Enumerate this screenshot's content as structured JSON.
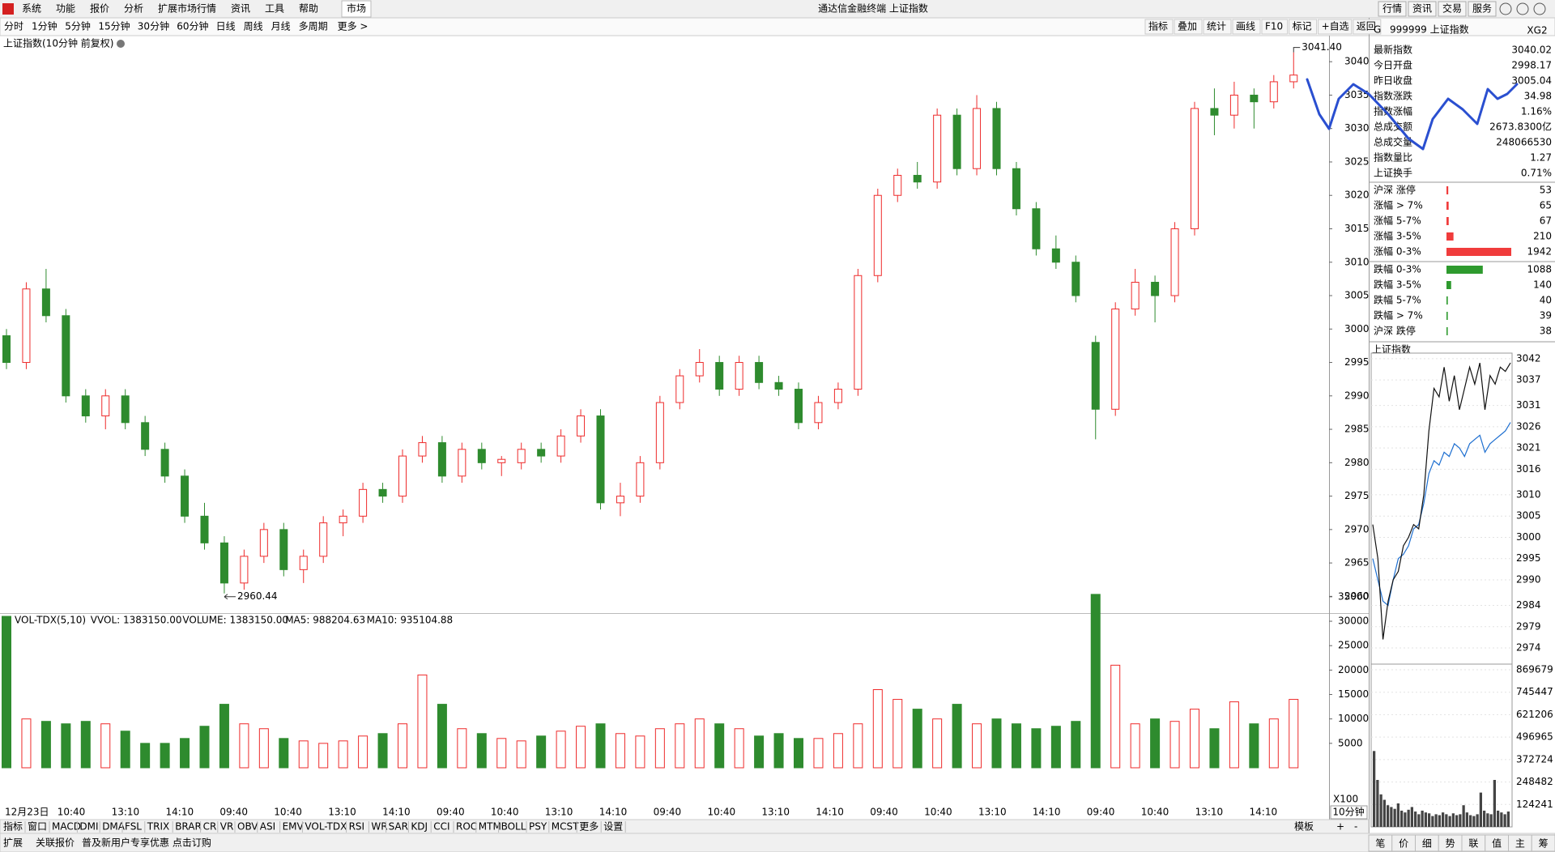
{
  "menu": [
    "系统",
    "功能",
    "报价",
    "分析",
    "扩展市场行情",
    "资讯",
    "工具",
    "帮助"
  ],
  "market_tab": "市场",
  "window_title": "通达信金融终端 上证指数",
  "top_buttons": [
    "行情",
    "资讯",
    "交易",
    "服务"
  ],
  "periods": [
    "分时",
    "1分钟",
    "5分钟",
    "15分钟",
    "30分钟",
    "60分钟",
    "日线",
    "周线",
    "月线",
    "多周期"
  ],
  "period_more": "更多 >",
  "tools": [
    "指标",
    "叠加",
    "统计",
    "画线",
    "F10",
    "标记",
    "+自选",
    "返回"
  ],
  "main_chart": {
    "title": "上证指数(10分钟 前复权)",
    "ylim": [
      2957.5,
      3043.9
    ],
    "yticks": [
      2960,
      2965,
      2970,
      2975,
      2980,
      2985,
      2990,
      2995,
      3000,
      3005,
      3010,
      3015,
      3020,
      3025,
      3030,
      3035,
      3040
    ],
    "candles": [
      [
        2999,
        3000,
        2994,
        2995
      ],
      [
        2995,
        3007,
        2994,
        3006
      ],
      [
        3006,
        3009,
        3001,
        3002
      ],
      [
        3002,
        3003,
        2989,
        2990
      ],
      [
        2990,
        2991,
        2986,
        2987
      ],
      [
        2987,
        2991,
        2985,
        2990
      ],
      [
        2990,
        2991,
        2985,
        2986
      ],
      [
        2986,
        2987,
        2981,
        2982
      ],
      [
        2982,
        2983,
        2977,
        2978
      ],
      [
        2978,
        2979,
        2971,
        2972
      ],
      [
        2972,
        2974,
        2967,
        2968
      ],
      [
        2968,
        2969,
        2960.44,
        2962
      ],
      [
        2962,
        2967,
        2961,
        2966
      ],
      [
        2966,
        2971,
        2965,
        2970
      ],
      [
        2970,
        2971,
        2963,
        2964
      ],
      [
        2964,
        2967,
        2962,
        2966
      ],
      [
        2966,
        2972,
        2965,
        2971
      ],
      [
        2971,
        2973,
        2969,
        2972
      ],
      [
        2972,
        2977,
        2971,
        2976
      ],
      [
        2976,
        2977,
        2974,
        2975
      ],
      [
        2975,
        2982,
        2974,
        2981
      ],
      [
        2981,
        2984,
        2980,
        2983
      ],
      [
        2983,
        2984,
        2977,
        2978
      ],
      [
        2978,
        2983,
        2977,
        2982
      ],
      [
        2982,
        2983,
        2979,
        2980
      ],
      [
        2980,
        2981,
        2978,
        2980.5
      ],
      [
        2980,
        2983,
        2979,
        2982
      ],
      [
        2982,
        2983,
        2980,
        2981
      ],
      [
        2981,
        2985,
        2980,
        2984
      ],
      [
        2984,
        2988,
        2983,
        2987
      ],
      [
        2987,
        2988,
        2973,
        2974
      ],
      [
        2974,
        2977,
        2972,
        2975
      ],
      [
        2975,
        2981,
        2974,
        2980
      ],
      [
        2980,
        2990,
        2979,
        2989
      ],
      [
        2989,
        2994,
        2988,
        2993
      ],
      [
        2993,
        2997,
        2992,
        2995
      ],
      [
        2995,
        2996,
        2990,
        2991
      ],
      [
        2991,
        2996,
        2990,
        2995
      ],
      [
        2995,
        2996,
        2991,
        2992
      ],
      [
        2992,
        2993,
        2990,
        2991
      ],
      [
        2991,
        2992,
        2985,
        2986
      ],
      [
        2986,
        2990,
        2985,
        2989
      ],
      [
        2989,
        2992,
        2988,
        2991
      ],
      [
        2991,
        3009,
        2990,
        3008
      ],
      [
        3008,
        3021,
        3007,
        3020
      ],
      [
        3020,
        3024,
        3019,
        3023
      ],
      [
        3023,
        3025,
        3021,
        3022
      ],
      [
        3022,
        3033,
        3021,
        3032
      ],
      [
        3032,
        3033,
        3023,
        3024
      ],
      [
        3024,
        3035,
        3023,
        3033
      ],
      [
        3033,
        3034,
        3023,
        3024
      ],
      [
        3024,
        3025,
        3017,
        3018
      ],
      [
        3018,
        3019,
        3011,
        3012
      ],
      [
        3012,
        3014,
        3009,
        3010
      ],
      [
        3010,
        3011,
        3004,
        3005
      ],
      [
        2998,
        2999,
        2983.5,
        2988
      ],
      [
        2988,
        3004,
        2987,
        3003
      ],
      [
        3003,
        3009,
        3002,
        3007
      ],
      [
        3007,
        3008,
        3001,
        3005
      ],
      [
        3005,
        3016,
        3004,
        3015
      ],
      [
        3015,
        3034,
        3014,
        3033
      ],
      [
        3033,
        3036,
        3029,
        3032
      ],
      [
        3032,
        3037,
        3030,
        3035
      ],
      [
        3035,
        3036,
        3030,
        3034
      ],
      [
        3034,
        3038,
        3033,
        3037
      ],
      [
        3037,
        3041.4,
        3036,
        3038
      ]
    ],
    "high_label": "3041.40",
    "low_label": "2960.44",
    "x_labels": [
      "12月23日",
      "10:40",
      "13:10",
      "14:10",
      "09:40",
      "10:40",
      "13:10",
      "14:10",
      "09:40",
      "10:40",
      "13:10",
      "14:10",
      "09:40",
      "10:40",
      "13:10",
      "14:10",
      "09:40",
      "10:40",
      "13:10",
      "14:10",
      "09:40",
      "10:40",
      "13:10",
      "14:10"
    ],
    "period_label": "10分钟"
  },
  "volume_chart": {
    "name": "VOL-TDX(5,10)",
    "vvol": "VVOL: 1383150.00",
    "volume": "VOLUME: 1383150.00",
    "ma5": "MA5: 988204.63",
    "ma10": "MA10: 935104.88",
    "unit_label": "X100",
    "ylim": [
      0,
      38300
    ],
    "yticks": [
      5000,
      10000,
      15000,
      20000,
      25000,
      30000,
      35000
    ],
    "values": [
      31000,
      10000,
      9500,
      9000,
      9500,
      9000,
      7500,
      5000,
      5000,
      6000,
      8500,
      13000,
      9000,
      8000,
      6000,
      5500,
      5000,
      5500,
      6500,
      7000,
      9000,
      19000,
      13000,
      8000,
      7000,
      6000,
      5500,
      6500,
      7500,
      8500,
      9000,
      7000,
      6500,
      8000,
      9000,
      10000,
      9000,
      8000,
      6500,
      7000,
      6000,
      6000,
      7000,
      9000,
      16000,
      14000,
      12000,
      10000,
      13000,
      9000,
      10000,
      9000,
      8000,
      8500,
      9500,
      35500,
      21000,
      9000,
      10000,
      9500,
      12000,
      8000,
      13500,
      9000,
      10000,
      14000
    ]
  },
  "indicator_tabs": [
    "指标",
    "窗口",
    "MACD",
    "DMI",
    "DMA",
    "FSL",
    "TRIX",
    "BRAR",
    "CR",
    "VR",
    "OBV",
    "ASI",
    "EMV",
    "VOL-TDX",
    "RSI",
    "WR",
    "SAR",
    "KDJ",
    "CCI",
    "ROC",
    "MTM",
    "BOLL",
    "PSY",
    "MCST",
    "更多",
    "设置"
  ],
  "active_indicator": 13,
  "template_tabs": [
    "模板",
    "+",
    "-"
  ],
  "status_bar": [
    "扩展",
    "关联报价",
    "普及新用户专享优惠 点击订购"
  ],
  "quote_panel": {
    "prefix": "G",
    "code": "999999 上证指数",
    "tag": "XG2",
    "rows": [
      {
        "label": "最新指数",
        "value": "3040.02",
        "color": "#e8201c"
      },
      {
        "label": "今日开盘",
        "value": "2998.17",
        "color": "#0a8a0a"
      },
      {
        "label": "昨日收盘",
        "value": "3005.04",
        "color": "#000000"
      },
      {
        "label": "指数涨跌",
        "value": "34.98",
        "color": "#e8201c"
      },
      {
        "label": "指数涨幅",
        "value": "1.16%",
        "color": "#e8201c"
      },
      {
        "label": "总成交额",
        "value": "2673.8300亿",
        "color": "#000000"
      },
      {
        "label": "总成交量",
        "value": "248066530",
        "color": "#000000"
      },
      {
        "label": "指数量比",
        "value": "1.27",
        "color": "#e8201c"
      },
      {
        "label": "上证换手",
        "value": "0.71%",
        "color": "#000000"
      }
    ]
  },
  "breadth": {
    "up_color": "#f03c3c",
    "down_color": "#2e9a2e",
    "up": [
      {
        "label": "沪深 涨停",
        "value": 53
      },
      {
        "label": "涨幅 > 7%",
        "value": 65
      },
      {
        "label": "涨幅 5-7%",
        "value": 67
      },
      {
        "label": "涨幅 3-5%",
        "value": 210
      },
      {
        "label": "涨幅 0-3%",
        "value": 1942
      }
    ],
    "down": [
      {
        "label": "跌幅 0-3%",
        "value": 1088
      },
      {
        "label": "跌幅 3-5%",
        "value": 140
      },
      {
        "label": "跌幅 5-7%",
        "value": 40
      },
      {
        "label": "跌幅 > 7%",
        "value": 39
      },
      {
        "label": "沪深 跌停",
        "value": 38
      }
    ]
  },
  "mini_chart": {
    "title": "上证指数",
    "ylim": [
      2970.2,
      3043.3
    ],
    "yticks": [
      3042,
      3037,
      3031,
      3026,
      3021,
      3016,
      3010,
      3005,
      3000,
      2995,
      2990,
      2984,
      2979,
      2974
    ],
    "price": [
      3003,
      2995,
      2976,
      2985,
      2990,
      2992,
      2998,
      3000,
      3003,
      3002,
      3010,
      3025,
      3035,
      3033,
      3040,
      3032,
      3038,
      3030,
      3035,
      3040,
      3036,
      3041,
      3030,
      3038,
      3036,
      3040,
      3039,
      3041
    ],
    "avg": [
      2995,
      2990,
      2985,
      2984,
      2990,
      2995,
      2996,
      2998,
      3002,
      3003,
      3008,
      3015,
      3018,
      3017,
      3020,
      3019,
      3022,
      3021,
      3019,
      3022,
      3023,
      3024,
      3020,
      3022,
      3023,
      3024,
      3025,
      3027
    ],
    "vol_ylim": [
      0,
      901100
    ],
    "vol_ticks": [
      869679,
      745447,
      621206,
      496965,
      372724,
      248482,
      124241
    ],
    "volume": [
      420000,
      260000,
      180000,
      150000,
      120000,
      110000,
      100000,
      130000,
      90000,
      80000,
      95000,
      110000,
      85000,
      70000,
      90000,
      80000,
      75000,
      60000,
      70000,
      65000,
      80000,
      70000,
      60000,
      75000,
      65000,
      70000,
      120000,
      80000,
      65000,
      60000,
      70000,
      190000,
      90000,
      75000,
      70000,
      260000,
      90000,
      80000,
      70000,
      85000
    ]
  },
  "bottom_tabs": [
    "笔",
    "价",
    "细",
    "势",
    "联",
    "值",
    "主",
    "筹"
  ],
  "active_bottom_tab": 3
}
